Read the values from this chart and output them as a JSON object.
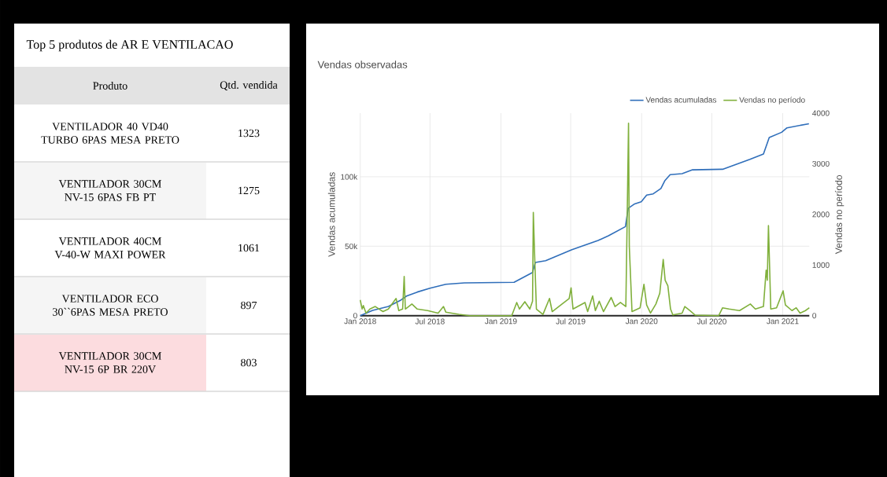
{
  "chart_data": [
    {
      "type": "other",
      "title": "Top 5 produtos de AR E VENTILACAO",
      "xlabel": "Produto",
      "ylabel": "Qtd. vendida",
      "categories": [
        "VENTILADOR 40 VD40 TURBO 6PAS MESA PRETO",
        "VENTILADOR 30CM NV-15 6PAS FB PT",
        "VENTILADOR 40CM V-40-W MAXI POWER",
        "VENTILADOR ECO 30``6PAS MESA PRETO",
        "VENTILADOR 30CM NV-15 6P BR 220V"
      ],
      "values": [
        1323,
        1275,
        1061,
        897,
        803
      ],
      "colors": [
        "#ffffff",
        "#f5f5f5",
        "#ffffff",
        "#f5f5f5",
        "#fcdcdf"
      ],
      "data_labels": true
    },
    {
      "type": "line",
      "title": "Vendas observadas",
      "ylabel": "Vendas acumuladas",
      "y2label": "Vendas no período",
      "xlim": [
        "2018-01-01",
        "2021-03-11"
      ],
      "xticks": [
        {
          "value": "2018-01-01",
          "label": "Jan 2018"
        },
        {
          "value": "2018-07-01",
          "label": "Jul 2018"
        },
        {
          "value": "2019-01-01",
          "label": "Jan 2019"
        },
        {
          "value": "2019-07-01",
          "label": "Jul 2019"
        },
        {
          "value": "2020-01-01",
          "label": "Jan 2020"
        },
        {
          "value": "2020-07-01",
          "label": "Jul 2020"
        },
        {
          "value": "2021-01-01",
          "label": "Jan 2021"
        }
      ],
      "ylim": [
        0,
        145800
      ],
      "yticks": [
        0,
        {
          "value": 50000,
          "label": "50k"
        },
        {
          "value": 100000,
          "label": "100k"
        }
      ],
      "y2lim": [
        0,
        4000
      ],
      "y2ticks": [
        0,
        1000,
        2000,
        3000,
        4000
      ],
      "grid": true,
      "legend": "top right",
      "series": [
        {
          "name": "Vendas acumuladas",
          "color": "#2f6eba",
          "x": [
            "2018-01-01",
            "2018-02-02",
            "2018-03-15",
            "2018-04-17",
            "2018-05-01",
            "2018-05-29",
            "2018-07-01",
            "2018-08-11",
            "2018-09-28",
            "2019-02-04",
            "2019-03-24",
            "2019-03-31",
            "2019-04-27",
            "2019-07-04",
            "2019-09-10",
            "2019-10-07",
            "2019-11-20",
            "2019-11-27",
            "2019-12-14",
            "2019-12-31",
            "2020-01-14",
            "2020-01-31",
            "2020-02-20",
            "2020-03-01",
            "2020-03-15",
            "2020-04-15",
            "2020-05-12",
            "2020-07-29",
            "2020-10-08",
            "2020-11-12",
            "2020-11-27",
            "2020-12-29",
            "2021-01-12",
            "2021-03-10"
          ],
          "values": [
            0,
            3800,
            6600,
            11300,
            14100,
            17000,
            19800,
            22600,
            23600,
            24000,
            31100,
            38300,
            39600,
            47500,
            54100,
            57500,
            64100,
            77300,
            80500,
            82000,
            86800,
            87700,
            91500,
            97100,
            101500,
            102200,
            105000,
            105400,
            112600,
            116400,
            128200,
            132000,
            135200,
            138200
          ]
        },
        {
          "name": "Vendas no período",
          "color": "#80b03c",
          "axis": "y2",
          "x": [
            "2018-01-01",
            "2018-01-06",
            "2018-01-09",
            "2018-01-16",
            "2018-01-26",
            "2018-02-09",
            "2018-03-01",
            "2018-03-15",
            "2018-04-04",
            "2018-04-11",
            "2018-04-21",
            "2018-04-25",
            "2018-04-28",
            "2018-05-15",
            "2018-05-29",
            "2018-06-25",
            "2018-07-22",
            "2018-08-05",
            "2018-08-11",
            "2018-09-14",
            "2018-10-12",
            "2019-01-29",
            "2019-02-11",
            "2019-02-18",
            "2019-03-04",
            "2019-03-17",
            "2019-03-24",
            "2019-03-26",
            "2019-03-29",
            "2019-04-03",
            "2019-04-20",
            "2019-05-07",
            "2019-05-14",
            "2019-05-31",
            "2019-06-27",
            "2019-07-02",
            "2019-07-07",
            "2019-08-07",
            "2019-08-14",
            "2019-08-27",
            "2019-09-03",
            "2019-09-13",
            "2019-09-24",
            "2019-10-14",
            "2019-10-24",
            "2019-11-07",
            "2019-11-21",
            "2019-11-24",
            "2019-11-28",
            "2019-11-30",
            "2019-12-07",
            "2019-12-28",
            "2020-01-07",
            "2020-01-14",
            "2020-01-24",
            "2020-02-07",
            "2020-02-17",
            "2020-02-26",
            "2020-03-02",
            "2020-03-09",
            "2020-03-16",
            "2020-03-22",
            "2020-04-15",
            "2020-04-22",
            "2020-05-05",
            "2020-05-19",
            "2020-07-19",
            "2020-07-29",
            "2020-08-15",
            "2020-09-11",
            "2020-10-09",
            "2020-10-22",
            "2020-11-12",
            "2020-11-19",
            "2020-11-22",
            "2020-11-25",
            "2020-12-01",
            "2020-12-16",
            "2021-01-02",
            "2021-01-08",
            "2021-01-25",
            "2021-02-05",
            "2021-02-15",
            "2021-03-01",
            "2021-03-11"
          ],
          "values": [
            310,
            130,
            200,
            50,
            130,
            180,
            80,
            130,
            340,
            100,
            130,
            775,
            130,
            230,
            130,
            100,
            50,
            180,
            70,
            25,
            0,
            0,
            260,
            130,
            275,
            130,
            285,
            2040,
            1290,
            130,
            25,
            340,
            80,
            180,
            340,
            550,
            130,
            260,
            80,
            390,
            100,
            285,
            80,
            360,
            180,
            260,
            180,
            1680,
            3800,
            1370,
            80,
            155,
            620,
            210,
            50,
            230,
            440,
            1110,
            700,
            590,
            130,
            15,
            50,
            180,
            100,
            10,
            0,
            155,
            130,
            100,
            230,
            130,
            180,
            900,
            700,
            1780,
            130,
            155,
            490,
            210,
            100,
            155,
            50,
            100,
            155
          ]
        }
      ]
    }
  ]
}
